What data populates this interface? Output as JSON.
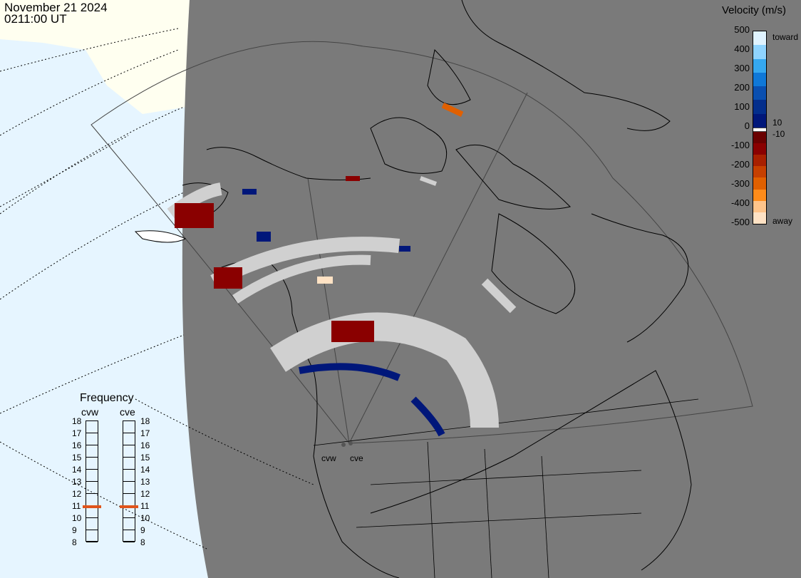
{
  "header": {
    "date": "November 21 2024",
    "time": "0211:00 UT"
  },
  "colorbar": {
    "title": "Velocity (m/s)",
    "ticks": [
      "500",
      "400",
      "300",
      "200",
      "100",
      "0",
      "-100",
      "-200",
      "-300",
      "-400",
      "-500"
    ],
    "inner_labels": [
      "10",
      "-10"
    ],
    "toward_label": "toward",
    "away_label": "away",
    "colors_toward": [
      "#dff3ff",
      "#8fd4ff",
      "#35a8f0",
      "#0f78d8",
      "#0a4fb0",
      "#032e8c",
      "#00177a"
    ],
    "colors_away": [
      "#6a0000",
      "#8a0000",
      "#a82000",
      "#c64000",
      "#e06000",
      "#ff8c1a",
      "#ffc48a",
      "#ffe2c4"
    ]
  },
  "frequency": {
    "title": "Frequency",
    "radars": [
      {
        "name": "cvw",
        "value": 10.9
      },
      {
        "name": "cve",
        "value": 10.9
      }
    ],
    "scale": [
      "18",
      "17",
      "16",
      "15",
      "14",
      "13",
      "12",
      "11",
      "10",
      "9",
      "8"
    ]
  },
  "sites": [
    {
      "name": "cvw"
    },
    {
      "name": "cve"
    }
  ],
  "map_colors": {
    "ocean": "#e6f5ff",
    "land_hemisphere": "#7a7a7a",
    "ice": "#fffff0",
    "gs": "#d0d0d0"
  }
}
